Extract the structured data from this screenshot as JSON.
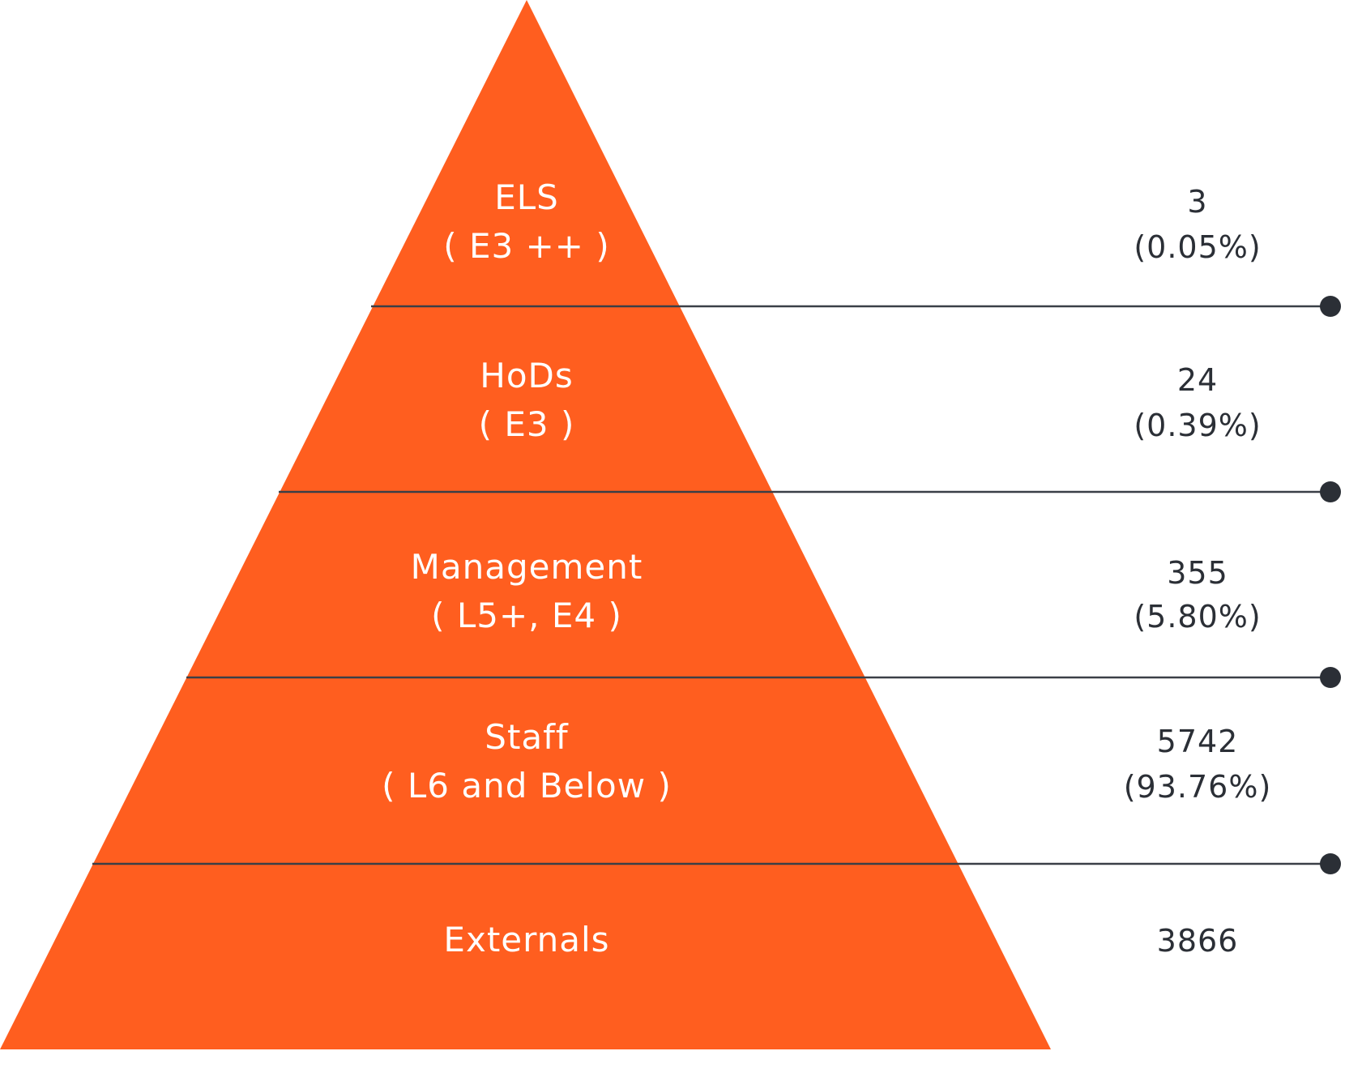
{
  "colors": {
    "pyramid": "#FF5E1F",
    "line": "#3a3f47",
    "dot": "#2b2f36",
    "label_text": "#ffffff",
    "value_text": "#2b2f36"
  },
  "tiers": [
    {
      "name": "ELS",
      "sub": "( E3 ++ )",
      "count": "3",
      "percent": "(0.05%)"
    },
    {
      "name": "HoDs",
      "sub": "( E3 )",
      "count": "24",
      "percent": "(0.39%)"
    },
    {
      "name": "Management",
      "sub": "( L5+, E4 )",
      "count": "355",
      "percent": "(5.80%)"
    },
    {
      "name": "Staff",
      "sub": "( L6 and Below )",
      "count": "5742",
      "percent": "(93.76%)"
    },
    {
      "name": "Externals",
      "sub": "",
      "count": "3866",
      "percent": ""
    }
  ]
}
